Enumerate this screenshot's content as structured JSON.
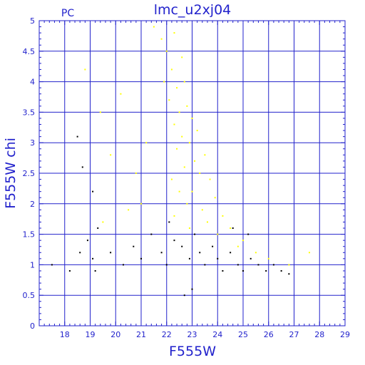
{
  "chart_data": {
    "type": "scatter",
    "title": "lmc_u2xj04",
    "corner_label": "PC",
    "xlabel": "F555W",
    "ylabel": "F555W  chi",
    "xlim": [
      17,
      29
    ],
    "ylim": [
      0,
      5
    ],
    "x_ticks": [
      18,
      19,
      20,
      21,
      22,
      23,
      24,
      25,
      26,
      27,
      28,
      29
    ],
    "y_ticks": [
      "0",
      "0.5",
      "1",
      "1.5",
      "2",
      "2.5",
      "3",
      "3.5",
      "4",
      "4.5",
      "5"
    ],
    "x_minor_step": 0.2,
    "y_minor_step": 0.1,
    "grid": true,
    "colors": {
      "axes": "#2222cc",
      "grid": "#2222cc",
      "text": "#2222cc",
      "point_yellow": "#ffff00",
      "point_black": "#000000"
    },
    "series": [
      {
        "color": "yellow",
        "marker": "dot",
        "points": [
          [
            21.5,
            4.9
          ],
          [
            21.8,
            4.7
          ],
          [
            22.0,
            4.5
          ],
          [
            22.3,
            4.8
          ],
          [
            22.6,
            4.4
          ],
          [
            22.2,
            4.2
          ],
          [
            21.9,
            4.0
          ],
          [
            22.4,
            3.9
          ],
          [
            22.7,
            4.0
          ],
          [
            22.1,
            3.7
          ],
          [
            22.5,
            3.5
          ],
          [
            22.8,
            3.6
          ],
          [
            22.3,
            3.3
          ],
          [
            23.0,
            3.4
          ],
          [
            22.6,
            3.1
          ],
          [
            22.9,
            3.0
          ],
          [
            23.2,
            3.2
          ],
          [
            22.4,
            2.9
          ],
          [
            23.1,
            2.7
          ],
          [
            23.5,
            2.8
          ],
          [
            22.7,
            2.6
          ],
          [
            23.3,
            2.5
          ],
          [
            22.2,
            2.4
          ],
          [
            23.7,
            2.4
          ],
          [
            22.5,
            2.2
          ],
          [
            23.0,
            2.2
          ],
          [
            23.9,
            2.1
          ],
          [
            22.8,
            2.0
          ],
          [
            23.4,
            1.9
          ],
          [
            24.2,
            1.8
          ],
          [
            22.3,
            1.8
          ],
          [
            23.6,
            1.7
          ],
          [
            24.5,
            1.6
          ],
          [
            22.9,
            1.6
          ],
          [
            24.0,
            1.5
          ],
          [
            25.0,
            1.4
          ],
          [
            21.2,
            3.0
          ],
          [
            20.8,
            2.5
          ],
          [
            21.0,
            2.0
          ],
          [
            20.5,
            1.9
          ],
          [
            19.8,
            2.8
          ],
          [
            20.2,
            3.8
          ],
          [
            19.4,
            3.5
          ],
          [
            18.8,
            4.2
          ],
          [
            19.5,
            1.7
          ],
          [
            24.8,
            1.3
          ],
          [
            25.5,
            1.2
          ],
          [
            26.0,
            1.1
          ],
          [
            26.8,
            1.0
          ],
          [
            27.6,
            1.2
          ]
        ]
      },
      {
        "color": "black",
        "marker": "dot",
        "points": [
          [
            17.5,
            1.0
          ],
          [
            18.2,
            0.9
          ],
          [
            18.6,
            1.2
          ],
          [
            18.9,
            1.4
          ],
          [
            19.1,
            1.1
          ],
          [
            19.2,
            0.9
          ],
          [
            19.3,
            1.6
          ],
          [
            19.1,
            2.2
          ],
          [
            18.7,
            2.6
          ],
          [
            18.5,
            3.1
          ],
          [
            19.8,
            1.2
          ],
          [
            20.3,
            1.0
          ],
          [
            20.7,
            1.3
          ],
          [
            21.0,
            1.1
          ],
          [
            21.4,
            1.5
          ],
          [
            21.8,
            1.2
          ],
          [
            22.0,
            1.0
          ],
          [
            22.3,
            1.4
          ],
          [
            22.6,
            1.3
          ],
          [
            22.9,
            1.1
          ],
          [
            23.1,
            1.5
          ],
          [
            23.3,
            1.2
          ],
          [
            23.5,
            1.0
          ],
          [
            23.8,
            1.3
          ],
          [
            24.0,
            1.1
          ],
          [
            24.2,
            0.9
          ],
          [
            24.5,
            1.2
          ],
          [
            24.8,
            1.0
          ],
          [
            25.0,
            0.9
          ],
          [
            25.3,
            1.1
          ],
          [
            25.6,
            1.0
          ],
          [
            25.9,
            0.9
          ],
          [
            26.2,
            1.0
          ],
          [
            26.5,
            0.9
          ],
          [
            26.8,
            0.85
          ],
          [
            23.0,
            0.6
          ],
          [
            22.7,
            0.5
          ],
          [
            24.6,
            1.6
          ],
          [
            25.2,
            1.5
          ],
          [
            22.1,
            1.7
          ]
        ]
      }
    ]
  }
}
